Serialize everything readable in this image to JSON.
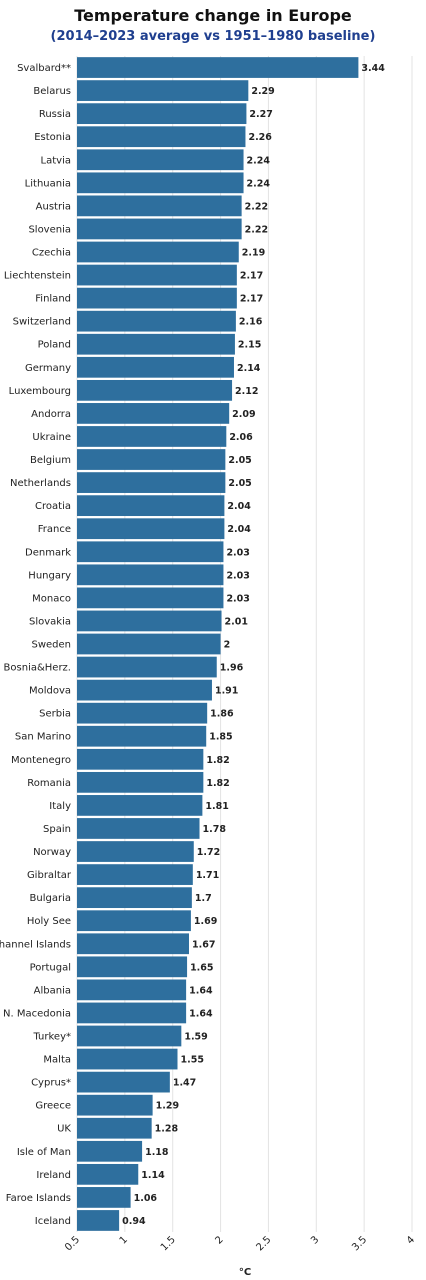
{
  "chart_data": {
    "type": "bar",
    "orientation": "horizontal",
    "title": "Temperature change in Europe",
    "subtitle": "(2014–2023 average vs 1951–1980 baseline)",
    "xlabel": "°C",
    "xlim": [
      0.5,
      4
    ],
    "xticks": [
      "0.5",
      "1",
      "1.5",
      "2",
      "2.5",
      "3",
      "3.5",
      "4"
    ],
    "grid": true,
    "bar_color": "#2e6f9e",
    "categories": [
      "Svalbard**",
      "Belarus",
      "Russia",
      "Estonia",
      "Latvia",
      "Lithuania",
      "Austria",
      "Slovenia",
      "Czechia",
      "Liechtenstein",
      "Finland",
      "Switzerland",
      "Poland",
      "Germany",
      "Luxembourg",
      "Andorra",
      "Ukraine",
      "Belgium",
      "Netherlands",
      "Croatia",
      "France",
      "Denmark",
      "Hungary",
      "Monaco",
      "Slovakia",
      "Sweden",
      "Bosnia&Herz.",
      "Moldova",
      "Serbia",
      "San Marino",
      "Montenegro",
      "Romania",
      "Italy",
      "Spain",
      "Norway",
      "Gibraltar",
      "Bulgaria",
      "Holy See",
      "Channel Islands",
      "Portugal",
      "Albania",
      "N. Macedonia",
      "Turkey*",
      "Malta",
      "Cyprus*",
      "Greece",
      "UK",
      "Isle of Man",
      "Ireland",
      "Faroe Islands",
      "Iceland"
    ],
    "values": [
      3.44,
      2.29,
      2.27,
      2.26,
      2.24,
      2.24,
      2.22,
      2.22,
      2.19,
      2.17,
      2.17,
      2.16,
      2.15,
      2.14,
      2.12,
      2.09,
      2.06,
      2.05,
      2.05,
      2.04,
      2.04,
      2.03,
      2.03,
      2.03,
      2.01,
      2,
      1.96,
      1.91,
      1.86,
      1.85,
      1.82,
      1.82,
      1.81,
      1.78,
      1.72,
      1.71,
      1.7,
      1.69,
      1.67,
      1.65,
      1.64,
      1.64,
      1.59,
      1.55,
      1.47,
      1.29,
      1.28,
      1.18,
      1.14,
      1.06,
      0.94
    ],
    "value_labels": [
      "3.44",
      "2.29",
      "2.27",
      "2.26",
      "2.24",
      "2.24",
      "2.22",
      "2.22",
      "2.19",
      "2.17",
      "2.17",
      "2.16",
      "2.15",
      "2.14",
      "2.12",
      "2.09",
      "2.06",
      "2.05",
      "2.05",
      "2.04",
      "2.04",
      "2.03",
      "2.03",
      "2.03",
      "2.01",
      "2",
      "1.96",
      "1.91",
      "1.86",
      "1.85",
      "1.82",
      "1.82",
      "1.81",
      "1.78",
      "1.72",
      "1.71",
      "1.7",
      "1.69",
      "1.67",
      "1.65",
      "1.64",
      "1.64",
      "1.59",
      "1.55",
      "1.47",
      "1.29",
      "1.28",
      "1.18",
      "1.14",
      "1.06",
      "0.94"
    ]
  }
}
